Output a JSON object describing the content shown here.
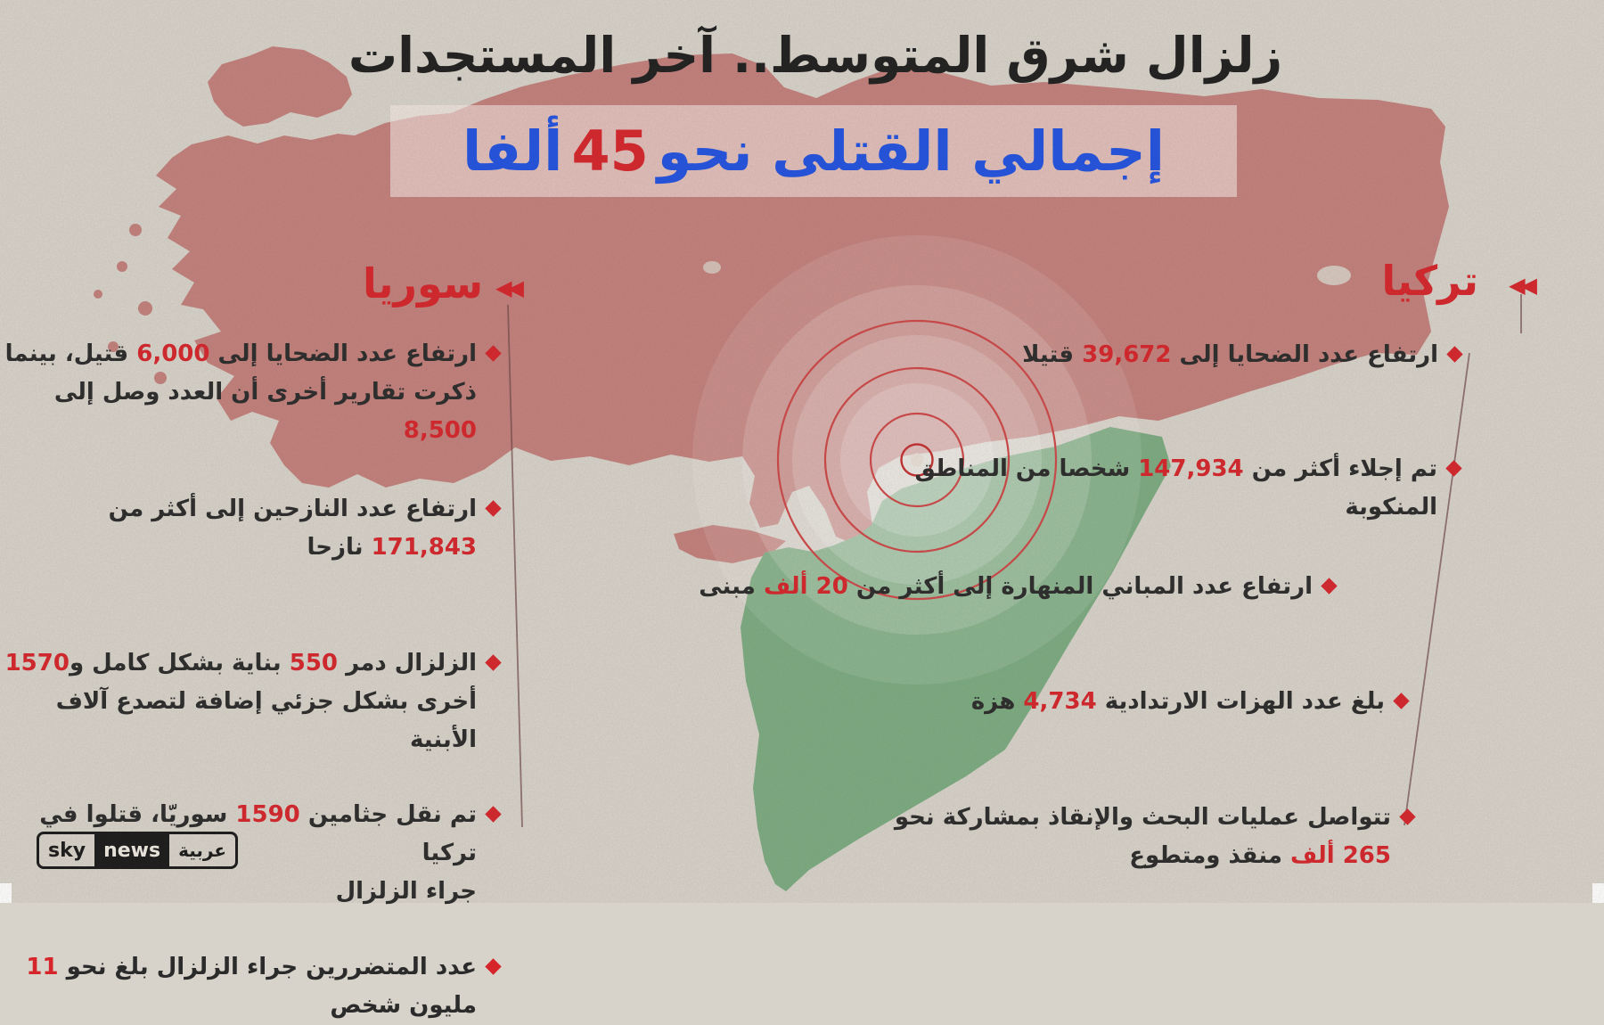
{
  "header": {
    "title": "زلزال شرق المتوسط.. آخر المستجدات",
    "subtitle_prefix": "إجمالي القتلى نحو",
    "subtitle_number": "45",
    "subtitle_suffix": "ألفا"
  },
  "sections": {
    "syria": {
      "label": "سوريا",
      "bullets": [
        {
          "segments": [
            {
              "t": "ارتفاع عدد الضحايا إلى ",
              "red": false
            },
            {
              "t": "6,000",
              "red": true
            },
            {
              "t": " قتيل، بينما\nذكرت تقارير أخرى أن العدد وصل إلى ",
              "red": false
            },
            {
              "t": "8,500",
              "red": true
            }
          ]
        },
        {
          "segments": [
            {
              "t": "ارتفاع عدد النازحين إلى أكثر من ",
              "red": false
            },
            {
              "t": "171,843",
              "red": true
            },
            {
              "t": " نازحا",
              "red": false
            }
          ]
        },
        {
          "segments": [
            {
              "t": "الزلزال دمر ",
              "red": false
            },
            {
              "t": "550",
              "red": true
            },
            {
              "t": " بناية بشكل كامل و",
              "red": false
            },
            {
              "t": "1570",
              "red": true
            },
            {
              "t": "\nأخرى بشكل جزئي إضافة لتصدع آلاف الأبنية",
              "red": false
            }
          ]
        },
        {
          "segments": [
            {
              "t": "تم نقل جثامين ",
              "red": false
            },
            {
              "t": "1590",
              "red": true
            },
            {
              "t": " سوريّا، قتلوا في تركيا\nجراء الزلزال",
              "red": false
            }
          ]
        },
        {
          "segments": [
            {
              "t": "عدد المتضررين جراء الزلزال بلغ نحو ",
              "red": false
            },
            {
              "t": "11",
              "red": true
            },
            {
              "t": "\nمليون شخص",
              "red": false
            }
          ]
        }
      ]
    },
    "turkey": {
      "label": "تركيا",
      "bullets": [
        {
          "segments": [
            {
              "t": "ارتفاع عدد الضحايا إلى ",
              "red": false
            },
            {
              "t": "39,672",
              "red": true
            },
            {
              "t": " قتيلا",
              "red": false
            }
          ]
        },
        {
          "segments": [
            {
              "t": "تم إجلاء أكثر من ",
              "red": false
            },
            {
              "t": "147,934",
              "red": true
            },
            {
              "t": " شخصا من المناطق\nالمنكوبة",
              "red": false
            }
          ]
        },
        {
          "segments": [
            {
              "t": "ارتفاع عدد المباني المنهارة إلى أكثر من  ",
              "red": false
            },
            {
              "t": "20 ألف",
              "red": true
            },
            {
              "t": " مبنى",
              "red": false
            }
          ]
        },
        {
          "segments": [
            {
              "t": "بلغ عدد الهزات الارتدادية ",
              "red": false
            },
            {
              "t": "4,734",
              "red": true
            },
            {
              "t": " هزة",
              "red": false
            }
          ]
        },
        {
          "segments": [
            {
              "t": "تتواصل عمليات البحث والإنقاذ بمشاركة نحو\n",
              "red": false
            },
            {
              "t": "265 ألف",
              "red": true
            },
            {
              "t": " منقذ ومتطوع",
              "red": false
            }
          ]
        }
      ]
    }
  },
  "logo": {
    "sky": "sky",
    "news": "news",
    "arabia": "عربية"
  },
  "icons": {
    "section_marker": "double-left-triangle-icon",
    "bullet_marker": "diamond-icon",
    "epicenter": "concentric-seismic-circles"
  },
  "colors": {
    "accent_red": "#d5252b",
    "subtitle_blue": "#2152e0",
    "turkey_map": "#c3807c",
    "syria_map": "#7cab81",
    "background_paper": "#d8d3ca"
  },
  "glyphs": {
    "arrows": "◀◀"
  }
}
